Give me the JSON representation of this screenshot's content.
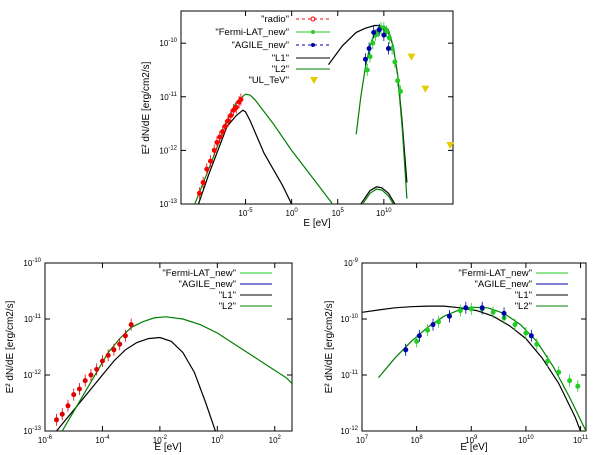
{
  "chart_data": [
    {
      "type": "line",
      "id": "top",
      "xscale": "log",
      "yscale": "log",
      "xlim_exp": [
        -12,
        17.5
      ],
      "ylim_exp": [
        -13,
        -9.4
      ],
      "xlabel": "E [eV]",
      "ylabel": "E² dN/dE [erg/cm2/s]",
      "xticks": [
        {
          "exp": -5,
          "label": "10",
          "sup": "-5"
        },
        {
          "exp": 0,
          "label": "10",
          "sup": "0"
        },
        {
          "exp": 5,
          "label": "10",
          "sup": "5"
        },
        {
          "exp": 10,
          "label": "10",
          "sup": "10"
        }
      ],
      "yticks": [
        {
          "exp": -13,
          "label": "10",
          "sup": "-13"
        },
        {
          "exp": -12,
          "label": "10",
          "sup": "-12"
        },
        {
          "exp": -11,
          "label": "10",
          "sup": "-11"
        },
        {
          "exp": -10,
          "label": "10",
          "sup": "-10"
        }
      ],
      "legend": [
        "\"radio\"",
        "\"Fermi-LAT_new\"",
        "\"AGILE_new\"",
        "\"L1\"",
        "\"L2\"",
        "\"UL_TeV\""
      ],
      "series": [
        {
          "name": "L1",
          "color": "#000000",
          "kind": "line",
          "x": [
            -10.5,
            -9,
            -8,
            -7,
            -6,
            -5.3,
            -5,
            -4.5,
            -4,
            -3,
            -2,
            -1,
            0,
            0.5,
            1
          ],
          "y": [
            -13.2,
            -12.45,
            -12.0,
            -11.55,
            -11.35,
            -11.25,
            -11.28,
            -11.45,
            -11.65,
            -12.05,
            -12.35,
            -12.65,
            -13.0,
            -13.2,
            -13.4
          ]
        },
        {
          "name": "L2",
          "color": "#008000",
          "kind": "line",
          "x": [
            -10.5,
            -9,
            -8,
            -7,
            -6,
            -5,
            -4.5,
            -4,
            -2,
            0,
            2,
            4,
            5.5
          ],
          "y": [
            -13.0,
            -12.35,
            -11.9,
            -11.45,
            -11.1,
            -10.95,
            -10.97,
            -11.05,
            -11.5,
            -12.0,
            -12.45,
            -12.9,
            -13.25
          ]
        },
        {
          "name": "L1 high-energy",
          "color": "#000000",
          "kind": "line",
          "x": [
            4,
            5.5,
            7,
            8,
            9,
            9.5,
            10,
            10.5,
            11,
            11.5,
            12,
            12.5
          ],
          "y": [
            -10.4,
            -10.05,
            -9.8,
            -9.72,
            -9.67,
            -9.67,
            -9.7,
            -9.8,
            -10.05,
            -10.6,
            -11.5,
            -12.6
          ]
        },
        {
          "name": "L2 high-energy",
          "color": "#008000",
          "kind": "line",
          "x": [
            7,
            7.5,
            8,
            8.5,
            9,
            9.5,
            10,
            10.5,
            11,
            11.5,
            12,
            12.5
          ],
          "y": [
            -11.7,
            -11.0,
            -10.45,
            -10.05,
            -9.8,
            -9.7,
            -9.68,
            -9.75,
            -10.05,
            -10.6,
            -11.6,
            -12.9
          ]
        },
        {
          "name": "L1 low bump",
          "color": "#000000",
          "kind": "line",
          "x": [
            6.5,
            7.5,
            8.5,
            9.2,
            9.8,
            10.5,
            11.2,
            12,
            12.8
          ],
          "y": [
            -13.4,
            -13.0,
            -12.75,
            -12.68,
            -12.7,
            -12.8,
            -13.0,
            -13.3,
            -13.6
          ]
        },
        {
          "name": "L2 low bump",
          "color": "#008000",
          "kind": "line",
          "x": [
            6.5,
            7.5,
            8.5,
            9.2,
            9.8,
            10.5,
            11.2,
            12,
            12.8
          ],
          "y": [
            -13.45,
            -13.05,
            -12.8,
            -12.72,
            -12.74,
            -12.85,
            -13.05,
            -13.35,
            -13.65
          ]
        },
        {
          "name": "radio",
          "color": "#ff0000",
          "kind": "points",
          "x": [
            -10,
            -9.6,
            -9.2,
            -8.8,
            -8.4,
            -8.1,
            -7.8,
            -7.5,
            -7.2,
            -6.9,
            -6.6,
            -6.3,
            -6.0,
            -5.7,
            -5.5
          ],
          "y": [
            -12.8,
            -12.6,
            -12.35,
            -12.2,
            -12.0,
            -11.85,
            -11.75,
            -11.65,
            -11.55,
            -11.45,
            -11.35,
            -11.25,
            -11.2,
            -11.1,
            -11.05
          ]
        },
        {
          "name": "Fermi-LAT_new",
          "color": "#22cc22",
          "kind": "points",
          "x": [
            8.2,
            8.5,
            8.8,
            9.1,
            9.4,
            9.7,
            10,
            10.3,
            10.6,
            10.9,
            11.2,
            11.5,
            11.8
          ],
          "y": [
            -10.5,
            -10.25,
            -10.0,
            -9.85,
            -9.78,
            -9.72,
            -9.72,
            -9.78,
            -9.9,
            -10.1,
            -10.35,
            -10.7,
            -10.9
          ]
        },
        {
          "name": "AGILE_new",
          "color": "#0000aa",
          "kind": "points",
          "x": [
            8.0,
            8.4,
            8.9,
            9.5,
            10.0,
            10.5
          ],
          "y": [
            -10.3,
            -10.1,
            -9.8,
            -9.75,
            -9.85,
            -10.1
          ]
        },
        {
          "name": "UL_TeV",
          "color": "#e6cc00",
          "kind": "triangles",
          "x": [
            13,
            14.5,
            17.2
          ],
          "y": [
            -10.25,
            -10.85,
            -11.9
          ]
        }
      ]
    },
    {
      "type": "line",
      "id": "bottom-left",
      "xscale": "log",
      "yscale": "log",
      "xlim_exp": [
        -6,
        2.6
      ],
      "ylim_exp": [
        -13,
        -10
      ],
      "xlabel": "E [eV]",
      "ylabel": "E² dN/dE [erg/cm2/s]",
      "xticks": [
        {
          "exp": -6,
          "label": "10",
          "sup": "-6"
        },
        {
          "exp": -4,
          "label": "10",
          "sup": "-4"
        },
        {
          "exp": -2,
          "label": "10",
          "sup": "-2"
        },
        {
          "exp": 0,
          "label": "10",
          "sup": "0"
        },
        {
          "exp": 2,
          "label": "10",
          "sup": "2"
        }
      ],
      "xtick_labels_override": [
        "10−⁶",
        "10−⁴",
        "10−²",
        "10⁰",
        "10²"
      ],
      "yticks": [
        {
          "exp": -13,
          "label": "10",
          "sup": "-13"
        },
        {
          "exp": -12,
          "label": "10",
          "sup": "-12"
        },
        {
          "exp": -11,
          "label": "10",
          "sup": "-11"
        },
        {
          "exp": -10,
          "label": "10",
          "sup": "-10"
        }
      ],
      "legend": [
        "\"Fermi-LAT_new\"",
        "\"AGILE_new\"",
        "\"L1\"",
        "\"L2\""
      ],
      "series": [
        {
          "name": "L1",
          "color": "#000000",
          "kind": "line",
          "x": [
            -5.6,
            -5.2,
            -4.8,
            -4.4,
            -4.0,
            -3.6,
            -3.2,
            -2.8,
            -2.4,
            -2.0,
            -1.6,
            -1.2,
            -0.8,
            -0.4,
            0.0
          ],
          "y": [
            -13.0,
            -12.75,
            -12.5,
            -12.25,
            -12.0,
            -11.75,
            -11.55,
            -11.42,
            -11.35,
            -11.33,
            -11.4,
            -11.6,
            -11.95,
            -12.5,
            -13.1
          ]
        },
        {
          "name": "L2",
          "color": "#008000",
          "kind": "line",
          "x": [
            -5.4,
            -5.0,
            -4.6,
            -4.2,
            -3.8,
            -3.4,
            -3.0,
            -2.6,
            -2.2,
            -1.8,
            -1.2,
            -0.6,
            0.0,
            0.6,
            1.2,
            1.8,
            2.4,
            2.6
          ],
          "y": [
            -13.0,
            -12.65,
            -12.3,
            -11.95,
            -11.6,
            -11.35,
            -11.15,
            -11.05,
            -10.98,
            -10.96,
            -11.0,
            -11.1,
            -11.25,
            -11.45,
            -11.65,
            -11.85,
            -12.05,
            -12.15
          ]
        },
        {
          "name": "radio",
          "color": "#dd0000",
          "kind": "points",
          "x": [
            -5.6,
            -5.4,
            -5.2,
            -5.0,
            -4.8,
            -4.6,
            -4.4,
            -4.2,
            -4.0,
            -3.8,
            -3.6,
            -3.4,
            -3.2,
            -3.0
          ],
          "y": [
            -12.8,
            -12.7,
            -12.55,
            -12.35,
            -12.25,
            -12.1,
            -12.0,
            -11.9,
            -11.75,
            -11.65,
            -11.55,
            -11.45,
            -11.3,
            -11.1
          ]
        }
      ]
    },
    {
      "type": "line",
      "id": "bottom-right",
      "xscale": "log",
      "yscale": "log",
      "xlim_exp": [
        7,
        11.1
      ],
      "ylim_exp": [
        -12,
        -9
      ],
      "xlabel": "E [eV]",
      "ylabel": "E² dN/dE [erg/cm2/s]",
      "xticks": [
        {
          "exp": 7,
          "label": "10",
          "sup": "7"
        },
        {
          "exp": 8,
          "label": "10",
          "sup": "8"
        },
        {
          "exp": 9,
          "label": "10",
          "sup": "9"
        },
        {
          "exp": 10,
          "label": "10",
          "sup": "10"
        },
        {
          "exp": 11,
          "label": "10",
          "sup": "11"
        }
      ],
      "yticks": [
        {
          "exp": -12,
          "label": "10",
          "sup": "-12"
        },
        {
          "exp": -11,
          "label": "10",
          "sup": "-11"
        },
        {
          "exp": -10,
          "label": "10",
          "sup": "-10"
        },
        {
          "exp": -9,
          "label": "10",
          "sup": "-9"
        }
      ],
      "legend": [
        "\"Fermi-LAT_new\"",
        "\"AGILE_new\"",
        "\"L1\"",
        "\"L2\""
      ],
      "series": [
        {
          "name": "L1",
          "color": "#000000",
          "kind": "line",
          "x": [
            7.0,
            7.3,
            7.6,
            7.9,
            8.2,
            8.5,
            8.8,
            9.1,
            9.4,
            9.7,
            10.0,
            10.3,
            10.6,
            10.9,
            11.0
          ],
          "y": [
            -9.88,
            -9.84,
            -9.8,
            -9.78,
            -9.77,
            -9.77,
            -9.8,
            -9.85,
            -9.95,
            -10.12,
            -10.35,
            -10.7,
            -11.15,
            -11.75,
            -12.0
          ]
        },
        {
          "name": "L2",
          "color": "#008000",
          "kind": "line",
          "x": [
            7.3,
            7.6,
            7.9,
            8.2,
            8.5,
            8.8,
            9.0,
            9.3,
            9.6,
            9.9,
            10.2,
            10.5,
            10.8,
            11.1
          ],
          "y": [
            -11.05,
            -10.7,
            -10.4,
            -10.15,
            -9.95,
            -9.83,
            -9.79,
            -9.8,
            -9.9,
            -10.1,
            -10.4,
            -10.85,
            -11.4,
            -12.0
          ]
        },
        {
          "name": "Fermi-LAT_new",
          "color": "#22cc22",
          "kind": "points",
          "x": [
            7.8,
            8.0,
            8.2,
            8.4,
            8.6,
            8.8,
            9.0,
            9.2,
            9.4,
            9.6,
            9.8,
            10.0,
            10.2,
            10.4,
            10.6,
            10.8,
            10.95
          ],
          "y": [
            -10.55,
            -10.4,
            -10.2,
            -10.05,
            -9.95,
            -9.85,
            -9.82,
            -9.82,
            -9.88,
            -9.98,
            -10.1,
            -10.25,
            -10.45,
            -10.75,
            -10.95,
            -11.1,
            -11.2
          ]
        },
        {
          "name": "AGILE_new",
          "color": "#0000aa",
          "kind": "points",
          "x": [
            7.8,
            8.05,
            8.3,
            8.6,
            8.9,
            9.2,
            9.6,
            10.1
          ],
          "y": [
            -10.55,
            -10.3,
            -10.1,
            -9.95,
            -9.8,
            -9.8,
            -9.9,
            -10.3
          ]
        }
      ]
    }
  ]
}
